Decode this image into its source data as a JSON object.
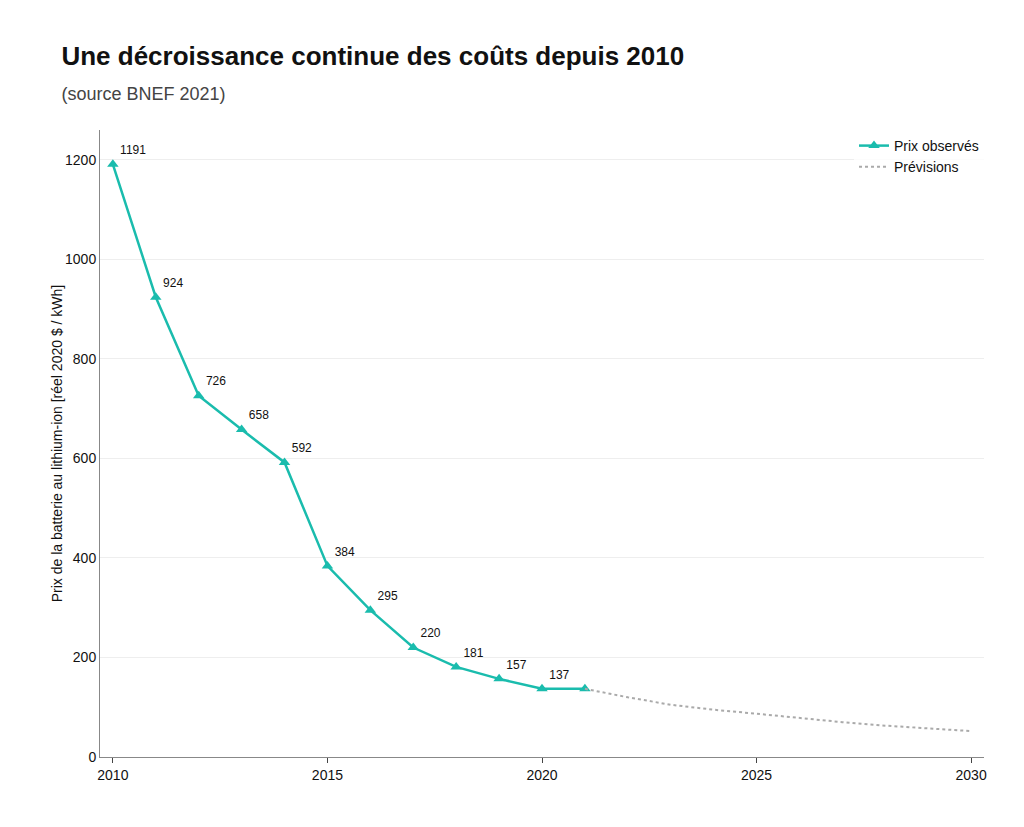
{
  "chart_data": {
    "type": "line",
    "title": "Une décroissance continue des coûts depuis 2010",
    "subtitle": "(source BNEF 2021)",
    "y_label": "Prix de la batterie au lithium-ion [réel 2020 $ / kWh]",
    "series": [
      {
        "name": "Prix observés",
        "color": "#1abcad",
        "marker": "triangle-up",
        "line_style": "solid",
        "x": [
          2010,
          2011,
          2012,
          2013,
          2014,
          2015,
          2016,
          2017,
          2018,
          2019,
          2020,
          2021
        ],
        "values": [
          1191,
          924,
          726,
          658,
          592,
          384,
          295,
          220,
          181,
          157,
          137,
          137
        ],
        "data_labels": true,
        "value_labels": [
          "1191",
          "924",
          "726",
          "658",
          "592",
          "384",
          "295",
          "220",
          "181",
          "157",
          "137",
          null
        ]
      },
      {
        "name": "Prévisions",
        "color": "#aaaaaa",
        "line_style": "dotted",
        "x": [
          2021,
          2022,
          2023,
          2024,
          2025,
          2026,
          2027,
          2028,
          2029,
          2030
        ],
        "values": [
          137,
          120,
          105,
          95,
          87,
          78,
          70,
          63,
          57,
          52
        ]
      }
    ],
    "xlim": [
      2009.7,
      2030.3
    ],
    "xticks": [
      2010,
      2015,
      2020,
      2025,
      2030
    ],
    "ylim": [
      0,
      1260
    ],
    "yticks": [
      0,
      200,
      400,
      600,
      800,
      1000,
      1200
    ],
    "grid": "y",
    "legend": "upper right"
  }
}
